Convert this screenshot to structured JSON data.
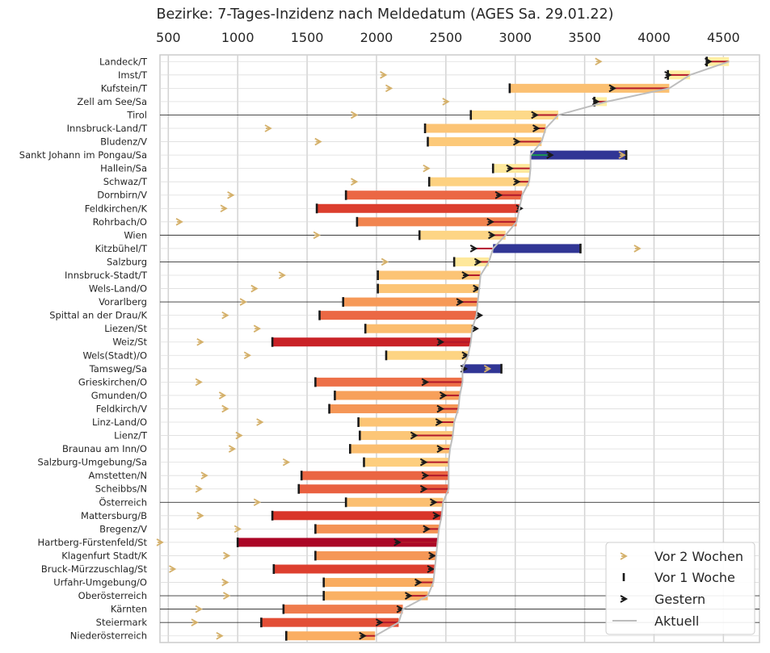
{
  "chart_data": {
    "type": "bar",
    "title": "Bezirke: 7-Tages-Inzidenz nach Meldedatum (AGES Sa. 29.01.22)",
    "xlim": [
      440,
      4760
    ],
    "xticks": [
      500,
      1000,
      1500,
      2000,
      2500,
      3000,
      3500,
      4000,
      4500
    ],
    "tick_labels": [
      "500",
      "1000",
      "1500",
      "2000",
      "2500",
      "3000",
      "3500",
      "4000",
      "4500"
    ],
    "x_axis_position": "top",
    "grid": true,
    "legend": {
      "placement": "bottom-right",
      "entries": [
        "Vor 2 Wochen",
        "Vor 1 Woche",
        "Gestern",
        "Aktuell"
      ]
    },
    "highlighted_rows": [
      "Tirol",
      "Wien",
      "Salzburg",
      "Vorarlberg",
      "Österreich",
      "Oberösterreich",
      "Kärnten",
      "Steiermark"
    ],
    "categories": [
      "Landeck/T",
      "Imst/T",
      "Kufstein/T",
      "Zell am See/Sa",
      "Tirol",
      "Innsbruck-Land/T",
      "Bludenz/V",
      "Sankt Johann im Pongau/Sa",
      "Hallein/Sa",
      "Schwaz/T",
      "Dornbirn/V",
      "Feldkirchen/K",
      "Rohrbach/O",
      "Wien",
      "Kitzbühel/T",
      "Salzburg",
      "Innsbruck-Stadt/T",
      "Wels-Land/O",
      "Vorarlberg",
      "Spittal an der Drau/K",
      "Liezen/St",
      "Weiz/St",
      "Wels(Stadt)/O",
      "Tamsweg/Sa",
      "Grieskirchen/O",
      "Gmunden/O",
      "Feldkirch/V",
      "Linz-Land/O",
      "Lienz/T",
      "Braunau am Inn/O",
      "Salzburg-Umgebung/Sa",
      "Amstetten/N",
      "Scheibbs/N",
      "Österreich",
      "Mattersburg/B",
      "Bregenz/V",
      "Hartberg-Fürstenfeld/St",
      "Klagenfurt Stadt/K",
      "Bruck-Mürzzuschlag/St",
      "Urfahr-Umgebung/O",
      "Oberösterreich",
      "Kärnten",
      "Steiermark",
      "Niederösterreich"
    ],
    "series": [
      {
        "name": "Vor 2 Wochen",
        "values": [
          3600,
          2050,
          2090,
          2500,
          1840,
          1220,
          1580,
          3770,
          2360,
          1840,
          950,
          900,
          580,
          1570,
          3880,
          2060,
          1320,
          1120,
          1040,
          910,
          1140,
          730,
          1070,
          2800,
          720,
          890,
          910,
          1160,
          1010,
          960,
          1350,
          760,
          720,
          1140,
          730,
          1000,
          440,
          920,
          530,
          910,
          920,
          720,
          690,
          870
        ]
      },
      {
        "name": "Vor 1 Woche",
        "values": [
          4380,
          4100,
          2960,
          3570,
          2680,
          2350,
          2370,
          3800,
          2840,
          2380,
          1780,
          1570,
          1860,
          2310,
          3470,
          2560,
          2010,
          2010,
          1760,
          1590,
          1920,
          1250,
          2070,
          2900,
          1560,
          1700,
          1660,
          1870,
          1880,
          1810,
          1910,
          1460,
          1440,
          1780,
          1250,
          1560,
          1000,
          1560,
          1260,
          1620,
          1620,
          1330,
          1170,
          1350
        ]
      },
      {
        "name": "Gestern",
        "values": [
          4390,
          4100,
          3700,
          3580,
          3140,
          3150,
          3010,
          3250,
          2960,
          3010,
          2880,
          3030,
          2820,
          2830,
          2700,
          2730,
          2640,
          2720,
          2600,
          2740,
          2710,
          2460,
          2640,
          2630,
          2350,
          2480,
          2460,
          2450,
          2270,
          2460,
          2340,
          2350,
          2340,
          2410,
          2430,
          2360,
          2150,
          2400,
          2390,
          2300,
          2230,
          2170,
          2020,
          1900
        ]
      },
      {
        "name": "Aktuell",
        "values": [
          4540,
          4260,
          4110,
          3660,
          3310,
          3220,
          3190,
          3110,
          3110,
          3100,
          3050,
          3030,
          3010,
          2930,
          2840,
          2810,
          2750,
          2740,
          2730,
          2720,
          2690,
          2680,
          2660,
          2620,
          2620,
          2600,
          2590,
          2560,
          2550,
          2530,
          2520,
          2520,
          2520,
          2480,
          2470,
          2450,
          2440,
          2430,
          2420,
          2410,
          2370,
          2190,
          2160,
          1990
        ]
      }
    ]
  }
}
